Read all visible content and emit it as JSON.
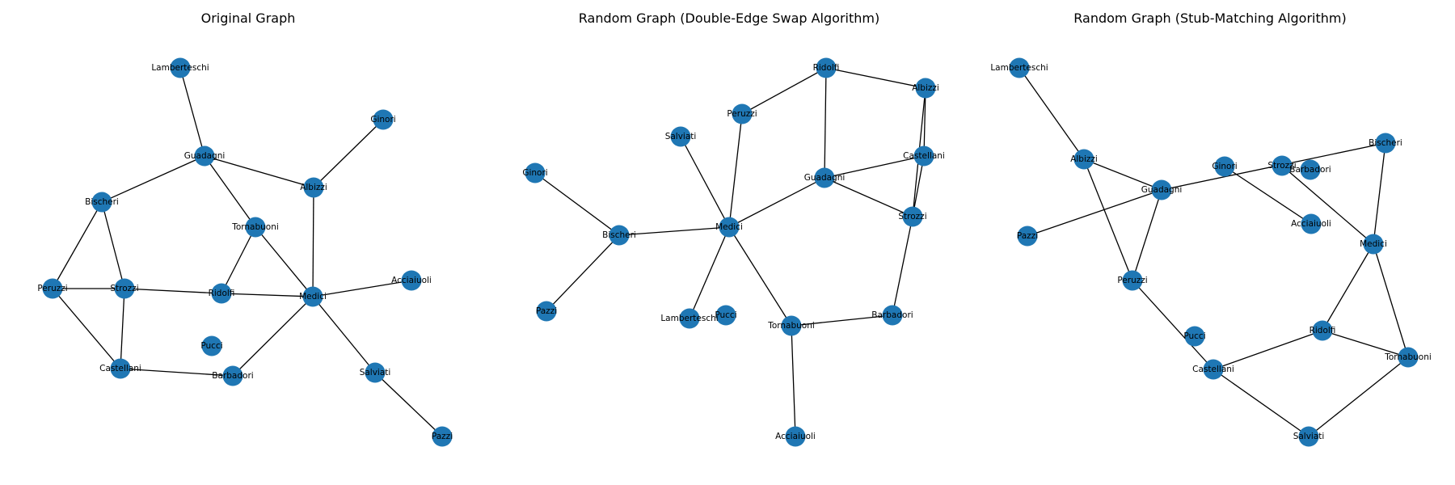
{
  "colors": {
    "node": "#1f77b4",
    "edge": "#000000",
    "background": "#ffffff"
  },
  "panels": [
    {
      "title": "Original Graph",
      "nodes": [
        "Lamberteschi",
        "Ginori",
        "Guadagni",
        "Albizzi",
        "Bischeri",
        "Tornabuoni",
        "Peruzzi",
        "Strozzi",
        "Ridolfi",
        "Medici",
        "Acciaiuoli",
        "Pucci",
        "Castellani",
        "Barbadori",
        "Salviati",
        "Pazzi"
      ],
      "edges": [
        [
          "Lamberteschi",
          "Guadagni"
        ],
        [
          "Guadagni",
          "Albizzi"
        ],
        [
          "Guadagni",
          "Bischeri"
        ],
        [
          "Guadagni",
          "Tornabuoni"
        ],
        [
          "Ginori",
          "Albizzi"
        ],
        [
          "Albizzi",
          "Medici"
        ],
        [
          "Bischeri",
          "Peruzzi"
        ],
        [
          "Bischeri",
          "Strozzi"
        ],
        [
          "Tornabuoni",
          "Ridolfi"
        ],
        [
          "Tornabuoni",
          "Medici"
        ],
        [
          "Peruzzi",
          "Strozzi"
        ],
        [
          "Peruzzi",
          "Castellani"
        ],
        [
          "Strozzi",
          "Ridolfi"
        ],
        [
          "Strozzi",
          "Castellani"
        ],
        [
          "Ridolfi",
          "Medici"
        ],
        [
          "Medici",
          "Acciaiuoli"
        ],
        [
          "Medici",
          "Barbadori"
        ],
        [
          "Medici",
          "Salviati"
        ],
        [
          "Castellani",
          "Barbadori"
        ],
        [
          "Salviati",
          "Pazzi"
        ]
      ]
    },
    {
      "title": "Random Graph (Double-Edge Swap Algorithm)",
      "nodes": [
        "Ridolfi",
        "Albizzi",
        "Peruzzi",
        "Salviati",
        "Castellani",
        "Ginori",
        "Guadagni",
        "Strozzi",
        "Bischeri",
        "Medici",
        "Pazzi",
        "Lamberteschi",
        "Pucci",
        "Tornabuoni",
        "Barbadori",
        "Acciaiuoli"
      ],
      "edges": [
        [
          "Ridolfi",
          "Albizzi"
        ],
        [
          "Ridolfi",
          "Peruzzi"
        ],
        [
          "Ridolfi",
          "Guadagni"
        ],
        [
          "Albizzi",
          "Castellani"
        ],
        [
          "Albizzi",
          "Strozzi"
        ],
        [
          "Peruzzi",
          "Medici"
        ],
        [
          "Salviati",
          "Medici"
        ],
        [
          "Castellani",
          "Guadagni"
        ],
        [
          "Castellani",
          "Strozzi"
        ],
        [
          "Guadagni",
          "Medici"
        ],
        [
          "Guadagni",
          "Strozzi"
        ],
        [
          "Ginori",
          "Bischeri"
        ],
        [
          "Bischeri",
          "Medici"
        ],
        [
          "Bischeri",
          "Pazzi"
        ],
        [
          "Medici",
          "Lamberteschi"
        ],
        [
          "Medici",
          "Tornabuoni"
        ],
        [
          "Strozzi",
          "Barbadori"
        ],
        [
          "Tornabuoni",
          "Barbadori"
        ],
        [
          "Tornabuoni",
          "Acciaiuoli"
        ]
      ]
    },
    {
      "title": "Random Graph (Stub-Matching Algorithm)",
      "nodes": [
        "Lamberteschi",
        "Albizzi",
        "Guadagni",
        "Ginori",
        "Strozzi",
        "Barbadori",
        "Bischeri",
        "Pazzi",
        "Acciaiuoli",
        "Medici",
        "Peruzzi",
        "Pucci",
        "Ridolfi",
        "Tornabuoni",
        "Castellani",
        "Salviati"
      ],
      "edges": [
        [
          "Lamberteschi",
          "Albizzi"
        ],
        [
          "Albizzi",
          "Guadagni"
        ],
        [
          "Albizzi",
          "Peruzzi"
        ],
        [
          "Guadagni",
          "Peruzzi"
        ],
        [
          "Guadagni",
          "Pazzi"
        ],
        [
          "Guadagni",
          "Bischeri"
        ],
        [
          "Ginori",
          "Acciaiuoli"
        ],
        [
          "Strozzi",
          "Medici"
        ],
        [
          "Bischeri",
          "Medici"
        ],
        [
          "Medici",
          "Ridolfi"
        ],
        [
          "Medici",
          "Tornabuoni"
        ],
        [
          "Peruzzi",
          "Castellani"
        ],
        [
          "Castellani",
          "Ridolfi"
        ],
        [
          "Castellani",
          "Salviati"
        ],
        [
          "Ridolfi",
          "Tornabuoni"
        ],
        [
          "Tornabuoni",
          "Salviati"
        ]
      ]
    }
  ]
}
